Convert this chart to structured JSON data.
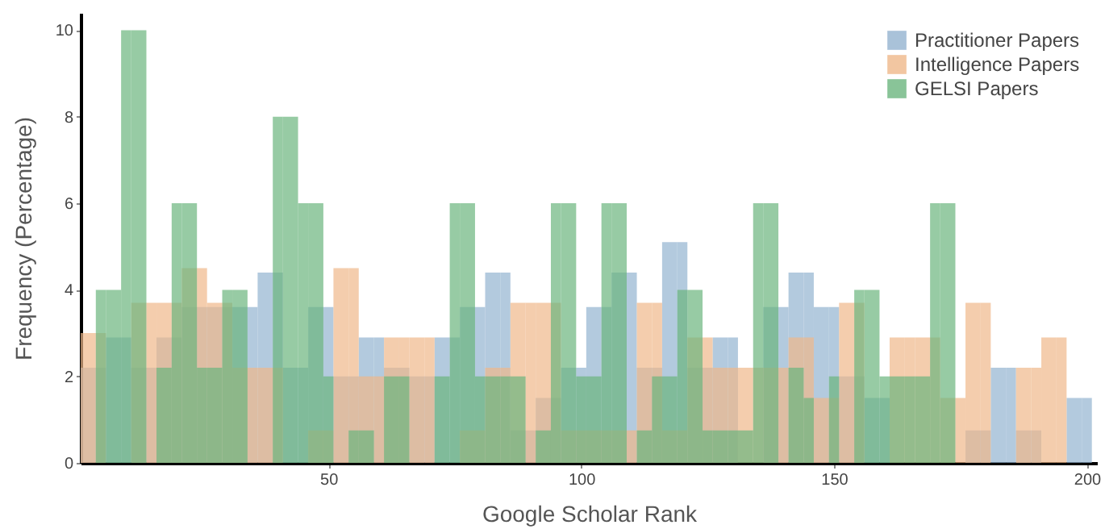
{
  "chart_data": {
    "type": "histogram",
    "xlabel": "Google Scholar Rank",
    "ylabel": "Frequency (Percentage)",
    "xlim": [
      1,
      202
    ],
    "ylim": [
      0,
      10.4
    ],
    "xticks": [
      50,
      100,
      150,
      200
    ],
    "yticks": [
      0,
      2,
      4,
      6,
      8,
      10
    ],
    "legend": "top right",
    "bins": [
      1,
      4,
      6,
      9,
      11,
      14,
      16,
      19,
      21,
      24,
      26,
      29,
      31,
      34,
      36,
      39,
      41,
      44,
      46,
      49,
      51,
      54,
      56,
      59,
      61,
      64,
      66,
      69,
      71,
      74,
      76,
      79,
      81,
      84,
      86,
      89,
      91,
      94,
      96,
      99,
      101,
      104,
      106,
      109,
      111,
      114,
      116,
      119,
      121,
      124,
      126,
      129,
      131,
      134,
      136,
      139,
      141,
      144,
      146,
      149,
      151,
      154,
      156,
      159,
      161,
      164,
      166,
      169,
      171,
      174,
      176,
      179,
      181,
      184,
      186,
      189,
      191,
      194,
      196,
      199,
      201
    ],
    "series": [
      {
        "name": "Practitioner Papers",
        "color": "#93b3d0",
        "values": [
          2.2,
          2.2,
          2.9,
          2.9,
          2.2,
          2.2,
          2.9,
          2.9,
          3.6,
          3.6,
          3.6,
          3.6,
          3.6,
          3.6,
          4.4,
          4.4,
          2.2,
          2.2,
          3.6,
          3.6,
          2.0,
          2.0,
          2.9,
          2.9,
          2.2,
          2.2,
          2.0,
          2.0,
          2.9,
          2.9,
          3.6,
          3.6,
          4.4,
          4.4,
          0.75,
          0.75,
          1.5,
          1.5,
          2.2,
          2.2,
          3.6,
          3.6,
          4.4,
          4.4,
          2.2,
          2.2,
          5.1,
          5.1,
          2.2,
          2.2,
          2.9,
          2.9,
          null,
          null,
          3.6,
          3.6,
          4.4,
          4.4,
          3.6,
          3.6,
          2.0,
          2.0,
          1.5,
          1.5,
          null,
          null,
          null,
          null,
          null,
          null,
          0.75,
          0.75,
          2.2,
          2.2,
          0.75,
          0.75,
          null,
          null,
          1.5,
          1.5
        ]
      },
      {
        "name": "Intelligence Papers",
        "color": "#efb88a",
        "values": [
          3.0,
          3.0,
          null,
          null,
          3.7,
          3.7,
          3.7,
          3.7,
          4.5,
          4.5,
          3.7,
          3.7,
          2.2,
          2.2,
          2.2,
          2.2,
          null,
          null,
          0.75,
          0.75,
          4.5,
          4.5,
          2.0,
          2.0,
          2.9,
          2.9,
          2.9,
          2.9,
          null,
          null,
          0.75,
          0.75,
          2.2,
          2.2,
          3.7,
          3.7,
          3.7,
          3.7,
          0.75,
          0.75,
          0.75,
          0.75,
          0.75,
          0.75,
          3.7,
          3.7,
          0.75,
          0.75,
          2.9,
          2.9,
          2.2,
          2.2,
          2.2,
          2.2,
          2.2,
          2.2,
          2.9,
          2.9,
          1.5,
          1.5,
          3.7,
          3.7,
          null,
          null,
          2.9,
          2.9,
          2.9,
          2.9,
          1.5,
          1.5,
          3.7,
          3.7,
          null,
          null,
          2.2,
          2.2,
          2.9,
          2.9,
          null,
          null
        ]
      },
      {
        "name": "GELSI Papers",
        "color": "#6bb57e",
        "values": [
          null,
          4,
          4,
          10,
          10,
          null,
          2.2,
          6,
          6,
          2.2,
          2.2,
          4,
          4,
          null,
          null,
          8,
          8,
          6,
          6,
          2.0,
          null,
          0.75,
          0.75,
          null,
          2.0,
          2.0,
          null,
          null,
          2.0,
          6,
          6,
          2.0,
          2.0,
          2.0,
          2.0,
          null,
          0.75,
          6,
          6,
          2.0,
          2.0,
          6,
          6,
          null,
          0.75,
          2.0,
          2.0,
          4,
          4,
          0.75,
          0.75,
          0.75,
          0.75,
          6,
          6,
          null,
          2.2,
          1.5,
          null,
          2.0,
          null,
          4,
          4,
          2.0,
          2.0,
          2.0,
          2.0,
          6,
          6,
          null,
          null,
          null,
          null,
          null,
          null,
          null,
          null,
          null,
          null,
          null
        ]
      }
    ]
  }
}
